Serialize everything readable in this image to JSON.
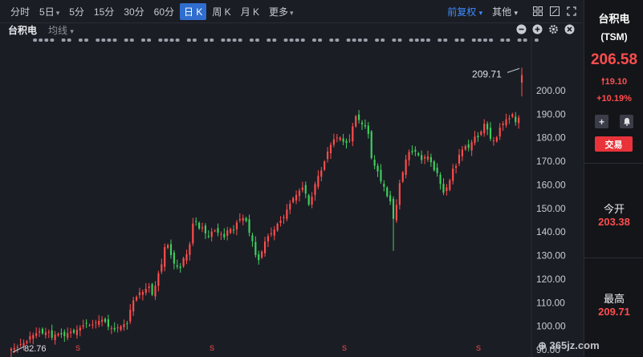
{
  "timeframes": {
    "items": [
      "分时",
      "5日",
      "5分",
      "15分",
      "30分",
      "60分",
      "日 K",
      "周 K",
      "月 K",
      "更多"
    ],
    "active": "日 K"
  },
  "toolbar": {
    "adjust_label": "前复权",
    "other_label": "其他"
  },
  "subbar": {
    "stock_name": "台积电",
    "ma_label": "均线"
  },
  "side": {
    "name": "台积电",
    "code": "(TSM)",
    "price": "206.58",
    "change": "19.10",
    "change_pct": "+10.19%",
    "trade_label": "交易",
    "open_label": "今开",
    "open_value": "203.38",
    "high_label": "最高",
    "high_value": "209.71"
  },
  "chart_data": {
    "type": "candlestick",
    "y_axis_ticks": [
      "200.00",
      "190.00",
      "180.00",
      "170.00",
      "160.00",
      "150.00",
      "140.00",
      "130.00",
      "120.00",
      "110.00",
      "100.00",
      "90.00"
    ],
    "ylim": [
      88,
      218
    ],
    "annotations": {
      "max_label": "209.71",
      "min_label": "82.76"
    },
    "event_marker": "S",
    "up_color": "#ff4d4d",
    "down_color": "#3ecf5e",
    "series_close": [
      90.5,
      90.8,
      91.2,
      92.4,
      92.9,
      93.6,
      95.8,
      96.3,
      97.1,
      97.9,
      97.0,
      97.4,
      97.6,
      95.2,
      96.5,
      96.8,
      96.6,
      95.8,
      97.1,
      97.7,
      97.3,
      98.5,
      99.5,
      100.4,
      101.2,
      100.5,
      100.8,
      101.7,
      102.3,
      102.8,
      101.9,
      99.8,
      99.3,
      98.6,
      99.5,
      100.0,
      100.9,
      101.0,
      107.0,
      111.0,
      112.5,
      114.4,
      114.5,
      115.9,
      116.8,
      113.4,
      117.2,
      122.5,
      126.3,
      133.6,
      134.5,
      130.2,
      126.6,
      125.3,
      124.7,
      128.9,
      130.6,
      134.8,
      143.6,
      144.6,
      141.5,
      142.0,
      139.4,
      138.3,
      140.2,
      140.6,
      139.7,
      139.2,
      137.7,
      140.7,
      141.3,
      140.7,
      144.0,
      145.5,
      145.9,
      144.7,
      139.7,
      136.1,
      130.2,
      128.1,
      131.7,
      136.0,
      138.3,
      139.5,
      141.0,
      143.5,
      144.8,
      146.3,
      149.5,
      152.0,
      154.4,
      155.7,
      157.5,
      158.9,
      156.3,
      151.6,
      155.0,
      160.3,
      163.8,
      166.1,
      169.9,
      174.1,
      177.0,
      179.3,
      180.1,
      180.0,
      178.3,
      177.8,
      179.1,
      184.8,
      189.1,
      187.5,
      185.7,
      184.8,
      181.6,
      171.4,
      168.1,
      165.7,
      161.5,
      159.2,
      155.2,
      153.0,
      145.6,
      151.5,
      160.7,
      165.3,
      170.8,
      174.0,
      173.8,
      174.1,
      172.6,
      170.5,
      171.8,
      172.1,
      169.6,
      166.2,
      165.0,
      160.4,
      156.7,
      158.9,
      162.0,
      166.9,
      168.0,
      172.8,
      175.0,
      176.5,
      175.7,
      178.1,
      180.5,
      180.2,
      182.6,
      185.9,
      183.5,
      179.6,
      178.8,
      180.2,
      184.3,
      186.0,
      187.8,
      188.2,
      190.0,
      186.6,
      188.5,
      206.58
    ],
    "high": 209.71,
    "low": 82.76
  }
}
